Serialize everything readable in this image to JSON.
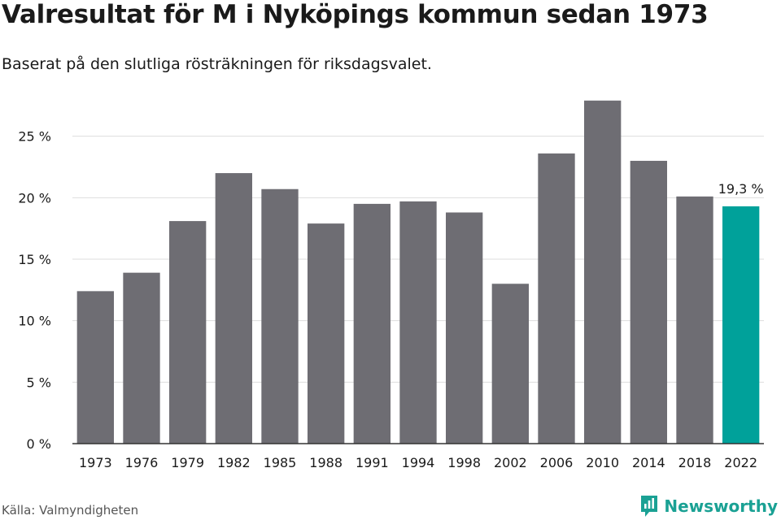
{
  "title": "Valresultat för M i Nyköpings kommun sedan 1973",
  "subtitle": "Baserat på den slutliga rösträkningen för riksdagsvalet.",
  "source": "Källa: Valmyndigheten",
  "brand": {
    "name": "Newsworthy",
    "icon": "newsworthy-logo-icon"
  },
  "colors": {
    "bar": "#6e6d73",
    "highlight": "#00a19a",
    "grid": "#dddddd",
    "axis": "#333333"
  },
  "chart_data": {
    "type": "bar",
    "categories": [
      "1973",
      "1976",
      "1979",
      "1982",
      "1985",
      "1988",
      "1991",
      "1994",
      "1998",
      "2002",
      "2006",
      "2010",
      "2014",
      "2018",
      "2022"
    ],
    "values": [
      12.4,
      13.9,
      18.1,
      22.0,
      20.7,
      17.9,
      19.5,
      19.7,
      18.8,
      13.0,
      23.6,
      27.9,
      23.0,
      20.1,
      19.3
    ],
    "highlight_category": "2022",
    "data_labels": [
      {
        "category": "2022",
        "text": "19,3 %"
      }
    ],
    "ylim": [
      0,
      30
    ],
    "yticks": [
      0,
      5,
      10,
      15,
      20,
      25
    ],
    "ytick_labels": [
      "0 %",
      "5 %",
      "10 %",
      "15 %",
      "20 %",
      "25 %"
    ],
    "grid": true,
    "xlabel": "",
    "ylabel": ""
  }
}
